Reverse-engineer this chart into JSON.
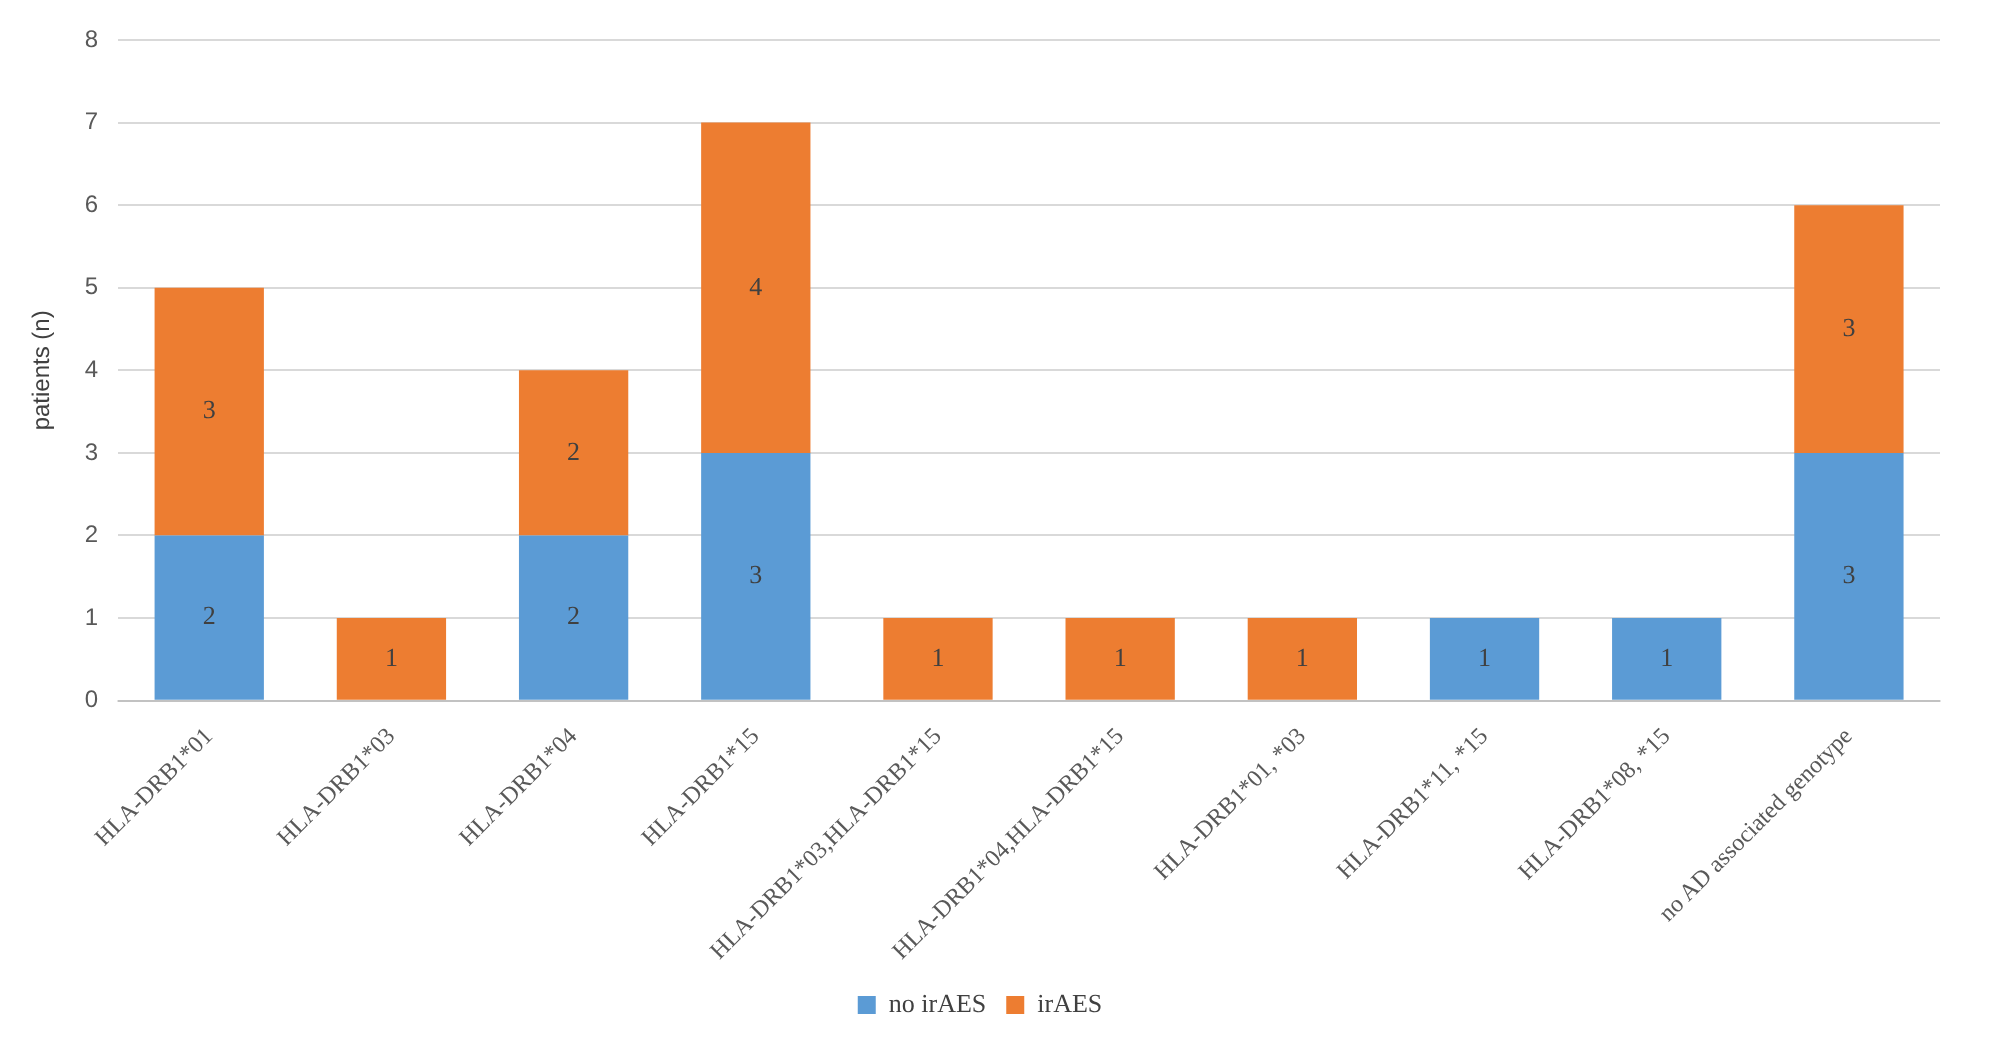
{
  "chart_data": {
    "type": "bar",
    "stacked": true,
    "ylabel": "patients (n)",
    "categories": [
      "HLA-DRB1*01",
      "HLA-DRB1*03",
      "HLA-DRB1*04",
      "HLA-DRB1*15",
      "HLA-DRB1*03,HLA-DRB1*15",
      "HLA-DRB1*04,HLA-DRB1*15",
      "HLA-DRB1*01, *03",
      "HLA-DRB1*11, *15",
      "HLA-DRB1*08, *15",
      "no AD associated genotype"
    ],
    "series": [
      {
        "name": "no irAES",
        "color": "#5b9bd5",
        "values": [
          2,
          null,
          2,
          3,
          null,
          null,
          null,
          1,
          1,
          3
        ]
      },
      {
        "name": "irAES",
        "color": "#ed7d31",
        "values": [
          3,
          1,
          2,
          4,
          1,
          1,
          1,
          null,
          null,
          3
        ]
      }
    ],
    "ylim": [
      0,
      8
    ],
    "yticks": [
      0,
      1,
      2,
      3,
      4,
      5,
      6,
      7,
      8
    ],
    "grid": "y",
    "legend": "bottom",
    "data_labels": true
  }
}
